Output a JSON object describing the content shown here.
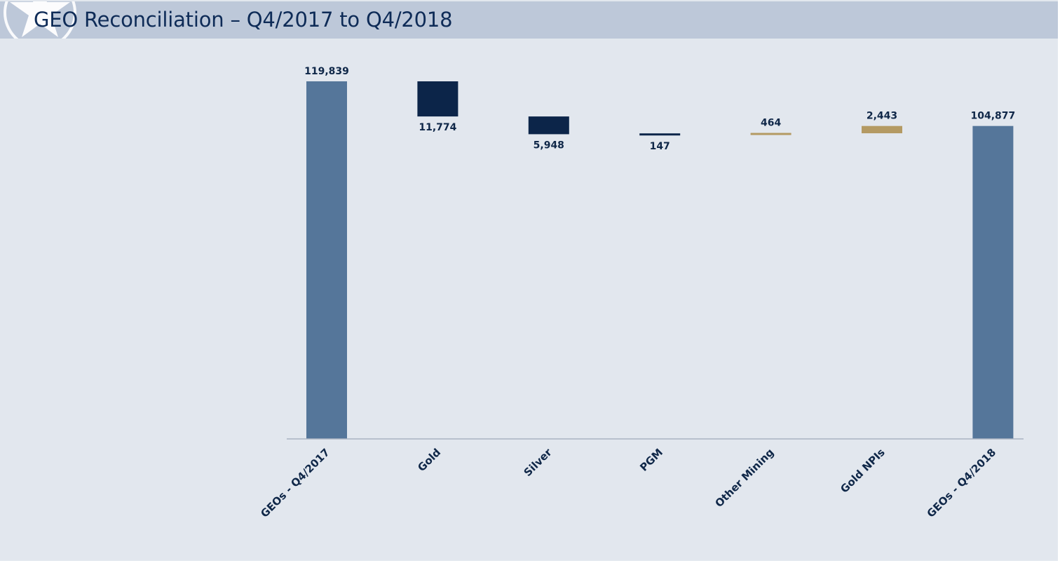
{
  "page": {
    "title": "GEO Reconciliation – Q4/2017 to Q4/2018"
  },
  "colors": {
    "background": "#e2e7ee",
    "title_bar": "#bdc8d9",
    "title_text": "#0e2b57",
    "total_bar": "#55769a",
    "decrease_bar": "#0c2549",
    "increase_bar": "#b49a63",
    "axis": "#aab4c2",
    "label_text": "#0f2748"
  },
  "chart_data": {
    "type": "bar",
    "subtype": "waterfall",
    "title": "",
    "xlabel": "",
    "ylabel": "",
    "ylim": [
      0,
      120000
    ],
    "grid": false,
    "legend": "none",
    "categories": [
      "GEOs - Q4/2017",
      "Gold",
      "Silver",
      "PGM",
      "Other Mining",
      "Gold NPIs",
      "GEOs - Q4/2018"
    ],
    "steps": [
      {
        "category": "GEOs - Q4/2017",
        "kind": "total",
        "value": 119839,
        "label": "119,839"
      },
      {
        "category": "Gold",
        "kind": "decrease",
        "value": 11774,
        "label": "11,774"
      },
      {
        "category": "Silver",
        "kind": "decrease",
        "value": 5948,
        "label": "5,948"
      },
      {
        "category": "PGM",
        "kind": "decrease",
        "value": 147,
        "label": "147"
      },
      {
        "category": "Other Mining",
        "kind": "increase",
        "value": 464,
        "label": "464"
      },
      {
        "category": "Gold NPIs",
        "kind": "increase",
        "value": 2443,
        "label": "2,443"
      },
      {
        "category": "GEOs - Q4/2018",
        "kind": "total",
        "value": 104877,
        "label": "104,877"
      }
    ]
  }
}
